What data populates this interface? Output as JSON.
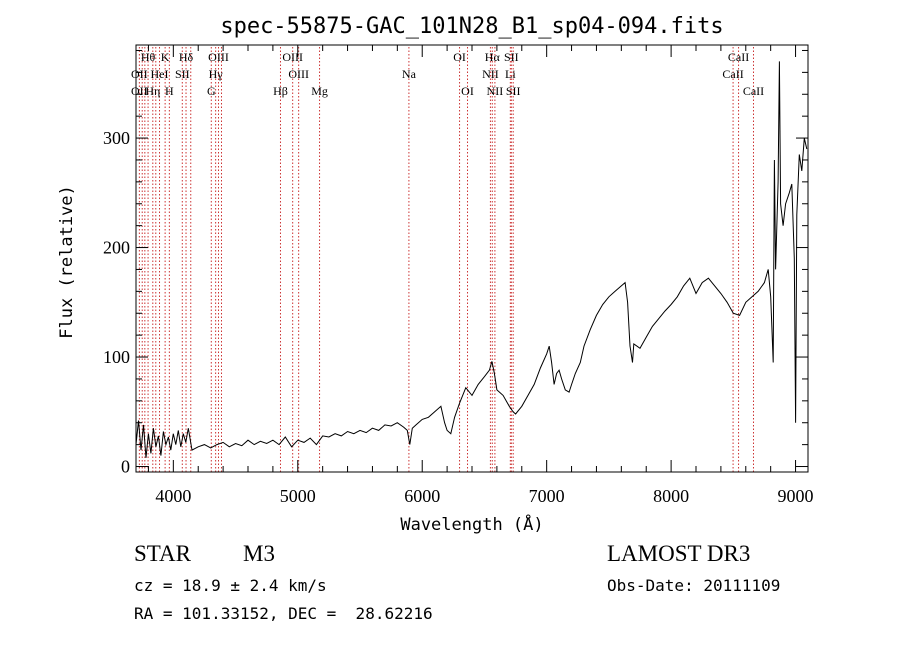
{
  "chart_data": {
    "type": "line",
    "title": "spec-55875-GAC_101N28_B1_sp04-094.fits",
    "xlabel": "Wavelength (Å)",
    "ylabel": "Flux (relative)",
    "xlim": [
      3700,
      9100
    ],
    "ylim": [
      -5,
      385
    ],
    "x_ticks": [
      4000,
      5000,
      6000,
      7000,
      8000,
      9000
    ],
    "y_ticks": [
      0,
      100,
      200,
      300
    ],
    "grid": false,
    "series": [
      {
        "name": "flux",
        "points": [
          [
            3700,
            20
          ],
          [
            3720,
            42
          ],
          [
            3740,
            15
          ],
          [
            3760,
            38
          ],
          [
            3780,
            8
          ],
          [
            3800,
            30
          ],
          [
            3820,
            12
          ],
          [
            3840,
            35
          ],
          [
            3860,
            18
          ],
          [
            3880,
            28
          ],
          [
            3900,
            10
          ],
          [
            3920,
            32
          ],
          [
            3940,
            20
          ],
          [
            3960,
            27
          ],
          [
            3980,
            15
          ],
          [
            4000,
            30
          ],
          [
            4020,
            20
          ],
          [
            4040,
            33
          ],
          [
            4060,
            18
          ],
          [
            4080,
            30
          ],
          [
            4100,
            22
          ],
          [
            4120,
            35
          ],
          [
            4150,
            15
          ],
          [
            4200,
            18
          ],
          [
            4250,
            20
          ],
          [
            4300,
            17
          ],
          [
            4350,
            20
          ],
          [
            4400,
            22
          ],
          [
            4450,
            18
          ],
          [
            4500,
            21
          ],
          [
            4550,
            19
          ],
          [
            4600,
            24
          ],
          [
            4650,
            20
          ],
          [
            4700,
            23
          ],
          [
            4750,
            21
          ],
          [
            4800,
            24
          ],
          [
            4850,
            20
          ],
          [
            4900,
            27
          ],
          [
            4950,
            18
          ],
          [
            5000,
            24
          ],
          [
            5050,
            22
          ],
          [
            5100,
            26
          ],
          [
            5150,
            20
          ],
          [
            5200,
            28
          ],
          [
            5250,
            27
          ],
          [
            5300,
            30
          ],
          [
            5350,
            28
          ],
          [
            5400,
            32
          ],
          [
            5450,
            30
          ],
          [
            5500,
            33
          ],
          [
            5550,
            31
          ],
          [
            5600,
            35
          ],
          [
            5650,
            33
          ],
          [
            5700,
            38
          ],
          [
            5750,
            37
          ],
          [
            5800,
            40
          ],
          [
            5850,
            36
          ],
          [
            5880,
            33
          ],
          [
            5900,
            20
          ],
          [
            5920,
            35
          ],
          [
            5950,
            38
          ],
          [
            6000,
            43
          ],
          [
            6050,
            45
          ],
          [
            6100,
            50
          ],
          [
            6150,
            55
          ],
          [
            6180,
            40
          ],
          [
            6200,
            33
          ],
          [
            6230,
            30
          ],
          [
            6260,
            45
          ],
          [
            6300,
            58
          ],
          [
            6350,
            72
          ],
          [
            6400,
            65
          ],
          [
            6450,
            75
          ],
          [
            6500,
            82
          ],
          [
            6540,
            88
          ],
          [
            6560,
            96
          ],
          [
            6580,
            85
          ],
          [
            6600,
            70
          ],
          [
            6650,
            65
          ],
          [
            6700,
            55
          ],
          [
            6730,
            50
          ],
          [
            6750,
            48
          ],
          [
            6800,
            55
          ],
          [
            6850,
            65
          ],
          [
            6900,
            75
          ],
          [
            6950,
            90
          ],
          [
            7000,
            103
          ],
          [
            7020,
            110
          ],
          [
            7040,
            95
          ],
          [
            7060,
            75
          ],
          [
            7080,
            85
          ],
          [
            7100,
            88
          ],
          [
            7120,
            80
          ],
          [
            7150,
            70
          ],
          [
            7180,
            68
          ],
          [
            7200,
            75
          ],
          [
            7230,
            85
          ],
          [
            7270,
            95
          ],
          [
            7300,
            110
          ],
          [
            7350,
            125
          ],
          [
            7400,
            138
          ],
          [
            7450,
            148
          ],
          [
            7500,
            155
          ],
          [
            7550,
            160
          ],
          [
            7600,
            165
          ],
          [
            7630,
            168
          ],
          [
            7650,
            150
          ],
          [
            7670,
            110
          ],
          [
            7690,
            95
          ],
          [
            7700,
            112
          ],
          [
            7750,
            108
          ],
          [
            7800,
            118
          ],
          [
            7850,
            128
          ],
          [
            7900,
            135
          ],
          [
            7950,
            142
          ],
          [
            8000,
            148
          ],
          [
            8050,
            155
          ],
          [
            8100,
            165
          ],
          [
            8150,
            172
          ],
          [
            8200,
            158
          ],
          [
            8250,
            168
          ],
          [
            8300,
            172
          ],
          [
            8350,
            165
          ],
          [
            8400,
            158
          ],
          [
            8450,
            150
          ],
          [
            8500,
            140
          ],
          [
            8550,
            138
          ],
          [
            8600,
            150
          ],
          [
            8650,
            155
          ],
          [
            8700,
            160
          ],
          [
            8750,
            168
          ],
          [
            8780,
            180
          ],
          [
            8800,
            155
          ],
          [
            8820,
            95
          ],
          [
            8830,
            280
          ],
          [
            8840,
            180
          ],
          [
            8860,
            260
          ],
          [
            8870,
            370
          ],
          [
            8880,
            240
          ],
          [
            8900,
            220
          ],
          [
            8920,
            240
          ],
          [
            8950,
            250
          ],
          [
            8970,
            258
          ],
          [
            8990,
            190
          ],
          [
            9000,
            40
          ],
          [
            9010,
            230
          ],
          [
            9030,
            285
          ],
          [
            9050,
            270
          ],
          [
            9070,
            300
          ],
          [
            9090,
            290
          ]
        ]
      }
    ],
    "spectral_lines": [
      {
        "label": "Hθ",
        "x": 3797,
        "row": 1
      },
      {
        "label": "OII",
        "x": 3727,
        "row": 2
      },
      {
        "label": "OII",
        "x": 3727,
        "row": 3
      },
      {
        "label": "HeI",
        "x": 3889,
        "row": 2
      },
      {
        "label": "Hη",
        "x": 3835,
        "row": 3
      },
      {
        "label": "K",
        "x": 3934,
        "row": 1
      },
      {
        "label": "SII",
        "x": 4072,
        "row": 2
      },
      {
        "label": "H",
        "x": 3968,
        "row": 3
      },
      {
        "label": "Hδ",
        "x": 4102,
        "row": 1
      },
      {
        "label": "OIII",
        "x": 4363,
        "row": 1
      },
      {
        "label": "Hγ",
        "x": 4340,
        "row": 2
      },
      {
        "label": "G",
        "x": 4305,
        "row": 3
      },
      {
        "label": "OIII",
        "x": 4959,
        "row": 1
      },
      {
        "label": "OIII",
        "x": 5007,
        "row": 2
      },
      {
        "label": "Hβ",
        "x": 4861,
        "row": 3
      },
      {
        "label": "Mg",
        "x": 5175,
        "row": 3
      },
      {
        "label": "Na",
        "x": 5893,
        "row": 2
      },
      {
        "label": "OI",
        "x": 6300,
        "row": 1
      },
      {
        "label": "OI",
        "x": 6364,
        "row": 3
      },
      {
        "label": "Hα",
        "x": 6563,
        "row": 1
      },
      {
        "label": "SII",
        "x": 6716,
        "row": 1
      },
      {
        "label": "NII",
        "x": 6548,
        "row": 2
      },
      {
        "label": "Li",
        "x": 6708,
        "row": 2
      },
      {
        "label": "NII",
        "x": 6584,
        "row": 3
      },
      {
        "label": "SII",
        "x": 6731,
        "row": 3
      },
      {
        "label": "CaII",
        "x": 8542,
        "row": 1
      },
      {
        "label": "CaII",
        "x": 8498,
        "row": 2
      },
      {
        "label": "CaII",
        "x": 8662,
        "row": 3
      }
    ],
    "extra_line_markers": [
      3750,
      3771,
      3859,
      4140,
      4387
    ]
  },
  "info": {
    "object_class": "STAR",
    "subclass": "M3",
    "survey": "LAMOST DR3",
    "redshift": "cz = 18.9 ± 2.4 km/s",
    "obs_date": "Obs-Date: 20111109",
    "coords": "RA = 101.33152, DEC =  28.62216"
  },
  "colors": {
    "line_marker": "#cc3333",
    "spectrum": "#000000",
    "axes": "#000000"
  }
}
